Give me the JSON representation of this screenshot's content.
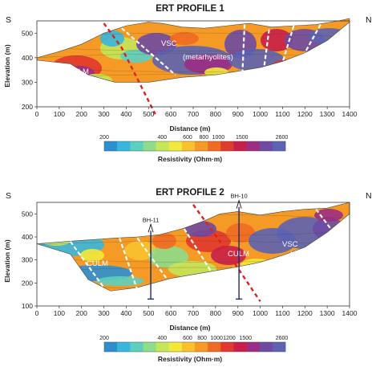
{
  "chart_data": [
    {
      "type": "heatmap",
      "title": "ERT PROFILE 1",
      "xlabel": "Distance (m)",
      "ylabel": "Elevation (m)",
      "xlim": [
        0,
        1400
      ],
      "ylim": [
        200,
        550
      ],
      "x_ticks": [
        "0",
        "100",
        "200",
        "300",
        "400",
        "500",
        "600",
        "700",
        "800",
        "900",
        "1000",
        "1100",
        "1200",
        "1300",
        "1400"
      ],
      "y_ticks": [
        "200",
        "300",
        "400",
        "500"
      ],
      "directions": {
        "left": "S",
        "right": "N"
      },
      "annotations": [
        "CULM",
        "VSC",
        "(metarhyolites)"
      ],
      "colorbar": {
        "title": "Resistivity (Ohm·m)",
        "ticks": [
          "200",
          "400",
          "600",
          "800",
          "1000",
          "1500",
          "2600"
        ],
        "colors": [
          "#2d8fd0",
          "#38b6dd",
          "#5ccfc0",
          "#8edc8a",
          "#c5e65a",
          "#f2ea3a",
          "#f9c22c",
          "#f59a24",
          "#ef6a24",
          "#e0392e",
          "#c81f4a",
          "#9b2d83",
          "#6e4aa3",
          "#5d63b2"
        ]
      },
      "surface": [
        [
          0,
          400
        ],
        [
          100,
          425
        ],
        [
          200,
          455
        ],
        [
          300,
          500
        ],
        [
          400,
          530
        ],
        [
          500,
          545
        ],
        [
          560,
          540
        ],
        [
          650,
          525
        ],
        [
          750,
          520
        ],
        [
          850,
          530
        ],
        [
          950,
          540
        ],
        [
          1050,
          525
        ],
        [
          1150,
          530
        ],
        [
          1250,
          535
        ],
        [
          1350,
          550
        ],
        [
          1400,
          560
        ]
      ],
      "base": [
        [
          0,
          390
        ],
        [
          150,
          375
        ],
        [
          230,
          330
        ],
        [
          350,
          300
        ],
        [
          500,
          300
        ],
        [
          650,
          320
        ],
        [
          800,
          330
        ],
        [
          900,
          345
        ],
        [
          1000,
          360
        ],
        [
          1100,
          385
        ],
        [
          1200,
          420
        ],
        [
          1300,
          470
        ],
        [
          1400,
          545
        ]
      ],
      "contacts": [
        [
          [
            380,
            520
          ],
          [
            620,
            330
          ]
        ],
        [
          [
            930,
            535
          ],
          [
            920,
            330
          ]
        ],
        [
          [
            1040,
            515
          ],
          [
            1015,
            345
          ]
        ],
        [
          [
            1150,
            530
          ],
          [
            1100,
            380
          ]
        ],
        [
          [
            1270,
            535
          ],
          [
            1200,
            420
          ]
        ]
      ],
      "fault_lines": [
        [
          [
            300,
            540
          ],
          [
            380,
            440
          ],
          [
            530,
            170
          ]
        ]
      ],
      "zone_values": [
        {
          "label": "CULM",
          "x": 290,
          "y": 370,
          "resistivity": 600
        },
        {
          "label": "VSC",
          "x": 750,
          "y": 455,
          "resistivity": 2600
        }
      ]
    },
    {
      "type": "heatmap",
      "title": "ERT PROFILE 2",
      "xlabel": "Distance (m)",
      "ylabel": "Elevation (m)",
      "xlim": [
        0,
        1400
      ],
      "ylim": [
        100,
        550
      ],
      "x_ticks": [
        "0",
        "100",
        "200",
        "300",
        "400",
        "500",
        "600",
        "700",
        "800",
        "900",
        "1000",
        "1100",
        "1200",
        "1300",
        "1400"
      ],
      "y_ticks": [
        "100",
        "200",
        "300",
        "400",
        "500"
      ],
      "directions": {
        "left": "S",
        "right": "N"
      },
      "boreholes": [
        {
          "label": "BH-11",
          "x": 510,
          "bottom": 130
        },
        {
          "label": "BH-10",
          "x": 905,
          "bottom": 130
        }
      ],
      "annotations": [
        "CULM",
        "CULM",
        "VSC",
        "(shales)",
        "VSC",
        "(metarhyolites)"
      ],
      "colorbar": {
        "title": "Resistivity (Ohm·m)",
        "ticks": [
          "200",
          "400",
          "600",
          "800",
          "1000",
          "1200",
          "1500",
          "2600"
        ],
        "colors": [
          "#2d8fd0",
          "#38b6dd",
          "#5ccfc0",
          "#8edc8a",
          "#c5e65a",
          "#f2ea3a",
          "#f9c22c",
          "#f59a24",
          "#ef6a24",
          "#e0392e",
          "#c81f4a",
          "#9b2d83",
          "#6e4aa3",
          "#5d63b2"
        ]
      },
      "surface": [
        [
          0,
          370
        ],
        [
          200,
          385
        ],
        [
          350,
          395
        ],
        [
          450,
          400
        ],
        [
          550,
          410
        ],
        [
          650,
          435
        ],
        [
          750,
          470
        ],
        [
          820,
          500
        ],
        [
          900,
          510
        ],
        [
          1000,
          495
        ],
        [
          1100,
          510
        ],
        [
          1200,
          520
        ],
        [
          1300,
          525
        ],
        [
          1400,
          550
        ]
      ],
      "base": [
        [
          0,
          370
        ],
        [
          150,
          325
        ],
        [
          230,
          215
        ],
        [
          330,
          165
        ],
        [
          450,
          180
        ],
        [
          600,
          220
        ],
        [
          750,
          245
        ],
        [
          900,
          270
        ],
        [
          1000,
          290
        ],
        [
          1100,
          320
        ],
        [
          1200,
          355
        ],
        [
          1300,
          420
        ],
        [
          1400,
          500
        ]
      ],
      "contacts": [
        [
          [
            150,
            380
          ],
          [
            300,
            180
          ]
        ],
        [
          [
            370,
            395
          ],
          [
            450,
            170
          ]
        ],
        [
          [
            450,
            395
          ],
          [
            580,
            220
          ]
        ],
        [
          [
            660,
            435
          ],
          [
            780,
            250
          ]
        ],
        [
          [
            1250,
            520
          ],
          [
            1320,
            430
          ]
        ]
      ],
      "fault_lines": [
        [
          [
            700,
            540
          ],
          [
            820,
            380
          ],
          [
            1000,
            120
          ]
        ]
      ],
      "zone_values": [
        {
          "label": "CULM",
          "x": 220,
          "y": 300,
          "resistivity": 250
        },
        {
          "label": "CULM",
          "x": 720,
          "y": 320,
          "resistivity": 700
        },
        {
          "label": "VSC",
          "x": 1150,
          "y": 400,
          "resistivity": 2600
        }
      ]
    }
  ]
}
